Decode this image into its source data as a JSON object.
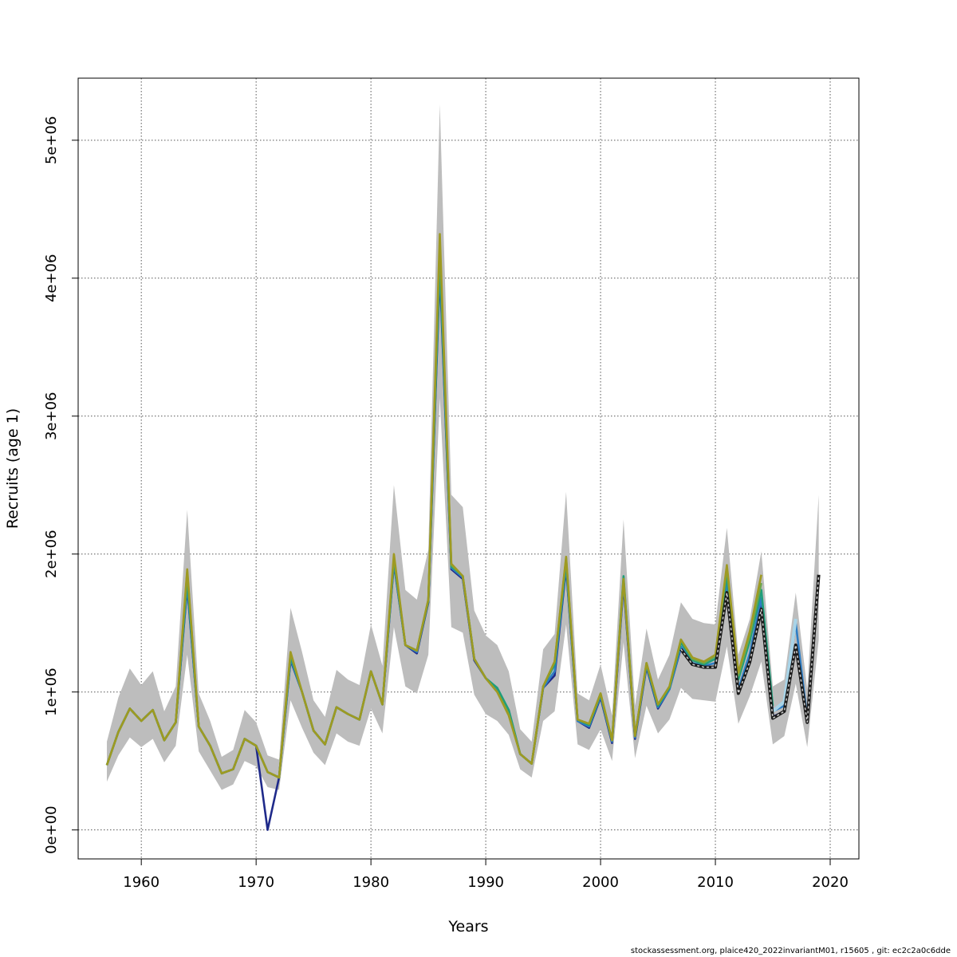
{
  "chart_data": {
    "type": "line",
    "xlabel": "Years",
    "ylabel": "Recruits (age 1)",
    "xlim": [
      1954.5,
      2022.5
    ],
    "ylim": [
      -210000,
      5450000
    ],
    "grid": true,
    "x_ticks": [
      1960,
      1970,
      1980,
      1990,
      2000,
      2010,
      2020
    ],
    "x_tick_labels": [
      "1960",
      "1970",
      "1980",
      "1990",
      "2000",
      "2010",
      "2020"
    ],
    "y_ticks": [
      0,
      1000000,
      2000000,
      3000000,
      4000000,
      5000000
    ],
    "y_tick_labels": [
      "0e+00",
      "1e+06",
      "2e+06",
      "3e+06",
      "4e+06",
      "5e+06"
    ],
    "band": {
      "x": [
        1957,
        1958,
        1959,
        1960,
        1961,
        1962,
        1963,
        1964,
        1965,
        1966,
        1967,
        1968,
        1969,
        1970,
        1971,
        1972,
        1973,
        1974,
        1975,
        1976,
        1977,
        1978,
        1979,
        1980,
        1981,
        1982,
        1983,
        1984,
        1985,
        1986,
        1987,
        1988,
        1989,
        1990,
        1991,
        1992,
        1993,
        1994,
        1995,
        1996,
        1997,
        1998,
        1999,
        2000,
        2001,
        2002,
        2003,
        2004,
        2005,
        2006,
        2007,
        2008,
        2009,
        2010,
        2011,
        2012,
        2013,
        2014,
        2015,
        2016,
        2017,
        2018,
        2019
      ],
      "upper": [
        640000,
        960000,
        1170000,
        1050000,
        1150000,
        860000,
        1040000,
        2320000,
        990000,
        790000,
        530000,
        580000,
        870000,
        780000,
        540000,
        510000,
        1610000,
        1290000,
        940000,
        820000,
        1160000,
        1090000,
        1050000,
        1490000,
        1190000,
        2500000,
        1740000,
        1670000,
        2030000,
        5260000,
        2430000,
        2340000,
        1590000,
        1410000,
        1340000,
        1150000,
        730000,
        640000,
        1310000,
        1420000,
        2450000,
        990000,
        940000,
        1200000,
        830000,
        2250000,
        900000,
        1460000,
        1090000,
        1270000,
        1650000,
        1530000,
        1500000,
        1490000,
        2190000,
        1270000,
        1530000,
        2020000,
        1040000,
        1090000,
        1720000,
        1020000,
        2430000
      ],
      "lower": [
        350000,
        540000,
        670000,
        600000,
        660000,
        490000,
        610000,
        1270000,
        570000,
        430000,
        290000,
        330000,
        500000,
        460000,
        310000,
        290000,
        940000,
        740000,
        560000,
        470000,
        700000,
        640000,
        610000,
        880000,
        700000,
        1470000,
        1040000,
        990000,
        1270000,
        3130000,
        1470000,
        1430000,
        980000,
        840000,
        790000,
        690000,
        440000,
        380000,
        790000,
        860000,
        1490000,
        620000,
        580000,
        730000,
        500000,
        1360000,
        520000,
        900000,
        700000,
        800000,
        1030000,
        950000,
        940000,
        930000,
        1330000,
        770000,
        970000,
        1220000,
        620000,
        680000,
        1060000,
        600000,
        1380000
      ]
    },
    "series": [
      {
        "color": "#1f2a8a",
        "values": [
          470000,
          710000,
          880000,
          790000,
          870000,
          650000,
          780000,
          1760000,
          750000,
          610000,
          410000,
          440000,
          660000,
          610000,
          420,
          380000,
          1230000,
          1000000,
          720000,
          620000,
          890000,
          840000,
          800000,
          1150000,
          910000,
          1930000,
          1340000,
          1280000,
          1650000,
          4050000,
          1890000,
          1820000,
          1230000,
          1100000,
          1010000,
          860000,
          550000,
          480000,
          1030000,
          1120000,
          1900000,
          790000,
          740000,
          960000,
          630000,
          1780000,
          660000,
          1180000,
          880000,
          1020000,
          1320000,
          1200000,
          1180000,
          1180000,
          1720000,
          1000000,
          1220000,
          1620000,
          820000,
          860000,
          1340000,
          790000,
          null
        ]
      },
      {
        "color": "#2e7dc4",
        "values": [
          470000,
          710000,
          880000,
          790000,
          870000,
          650000,
          780000,
          1780000,
          750000,
          610000,
          410000,
          440000,
          660000,
          610000,
          420000,
          380000,
          1240000,
          1000000,
          720000,
          620000,
          890000,
          840000,
          800000,
          1150000,
          910000,
          1940000,
          1340000,
          1290000,
          1660000,
          4100000,
          1900000,
          1830000,
          1240000,
          1100000,
          1020000,
          870000,
          550000,
          480000,
          1030000,
          1150000,
          1920000,
          790000,
          750000,
          970000,
          640000,
          1800000,
          670000,
          1190000,
          890000,
          1020000,
          1330000,
          1210000,
          1190000,
          1210000,
          1780000,
          1020000,
          1280000,
          1680000,
          860000,
          900000,
          1500000,
          810000,
          null
        ]
      },
      {
        "color": "#a8d4e8",
        "values": [
          null,
          null,
          null,
          null,
          null,
          null,
          null,
          null,
          null,
          null,
          null,
          null,
          null,
          null,
          null,
          null,
          null,
          null,
          null,
          null,
          null,
          null,
          null,
          null,
          null,
          null,
          null,
          null,
          null,
          null,
          null,
          null,
          null,
          null,
          null,
          null,
          null,
          null,
          null,
          null,
          null,
          null,
          null,
          null,
          null,
          null,
          null,
          null,
          null,
          null,
          null,
          null,
          null,
          null,
          null,
          null,
          null,
          null,
          860000,
          930000,
          1530000,
          null,
          null
        ]
      },
      {
        "color": "#1f9e7a",
        "values": [
          470000,
          710000,
          880000,
          790000,
          870000,
          650000,
          780000,
          1820000,
          750000,
          610000,
          410000,
          440000,
          660000,
          610000,
          420000,
          380000,
          1260000,
          1000000,
          720000,
          620000,
          890000,
          840000,
          800000,
          1150000,
          910000,
          1960000,
          1340000,
          1300000,
          1660000,
          4150000,
          1910000,
          1840000,
          1240000,
          1100000,
          1030000,
          870000,
          550000,
          480000,
          1040000,
          1200000,
          1940000,
          800000,
          760000,
          980000,
          650000,
          1840000,
          680000,
          1200000,
          900000,
          1030000,
          1360000,
          1230000,
          1200000,
          1240000,
          1850000,
          1090000,
          1370000,
          1740000,
          900000,
          null,
          null,
          null,
          null
        ]
      },
      {
        "color": "#6aa84f",
        "values": [
          470000,
          710000,
          880000,
          790000,
          870000,
          650000,
          780000,
          1870000,
          750000,
          610000,
          410000,
          440000,
          660000,
          610000,
          420000,
          380000,
          1280000,
          1000000,
          720000,
          620000,
          890000,
          840000,
          800000,
          1150000,
          910000,
          1980000,
          1340000,
          1300000,
          1670000,
          4250000,
          1920000,
          1840000,
          1240000,
          1100000,
          1000000,
          840000,
          550000,
          480000,
          1040000,
          1220000,
          1970000,
          800000,
          770000,
          990000,
          650000,
          1820000,
          680000,
          1210000,
          910000,
          1040000,
          1380000,
          1240000,
          1210000,
          1260000,
          1900000,
          1120000,
          1410000,
          1790000,
          null,
          null,
          null,
          null,
          null
        ]
      },
      {
        "color": "#9e9a22",
        "values": [
          470000,
          710000,
          880000,
          790000,
          870000,
          650000,
          780000,
          1890000,
          750000,
          610000,
          410000,
          440000,
          660000,
          610000,
          420000,
          380000,
          1290000,
          1000000,
          720000,
          620000,
          890000,
          840000,
          800000,
          1150000,
          910000,
          2000000,
          1340000,
          1300000,
          1670000,
          4320000,
          1930000,
          1840000,
          1240000,
          1100000,
          1000000,
          830000,
          550000,
          480000,
          1040000,
          1220000,
          1980000,
          800000,
          770000,
          990000,
          650000,
          1820000,
          680000,
          1210000,
          910000,
          1040000,
          1380000,
          1250000,
          1220000,
          1270000,
          1920000,
          1140000,
          1440000,
          1850000,
          null,
          null,
          null,
          null,
          null
        ]
      }
    ],
    "dashed_series": {
      "color": "#222222",
      "x": [
        2007,
        2008,
        2009,
        2010,
        2011,
        2012,
        2013,
        2014,
        2015,
        2016,
        2017,
        2018,
        2019
      ],
      "values": [
        1310000,
        1200000,
        1180000,
        1180000,
        1720000,
        990000,
        1220000,
        1600000,
        810000,
        860000,
        1340000,
        780000,
        1850000
      ]
    }
  },
  "footer_text": "stockassessment.org, plaice420_2022invariantM01, r15605 , git: ec2c2a0c6dde"
}
